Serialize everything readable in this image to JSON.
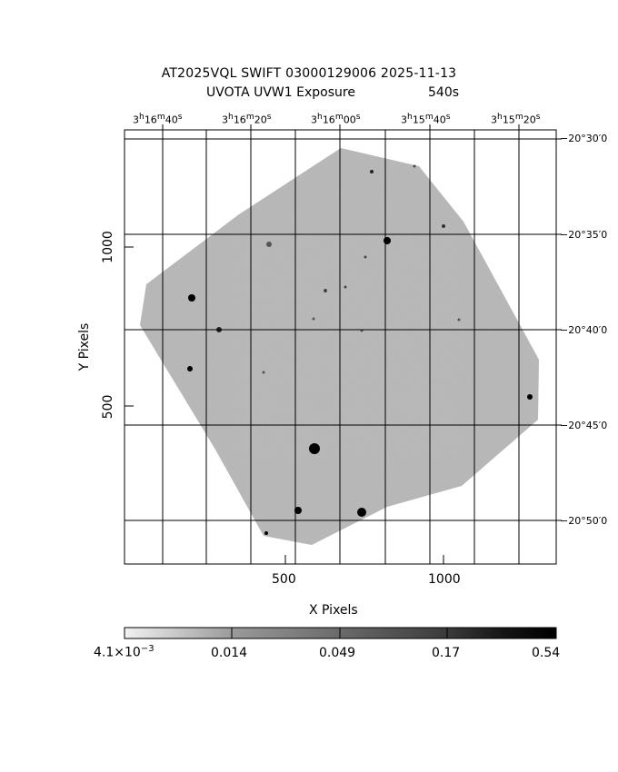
{
  "header": {
    "title_line1": "AT2025VQL SWIFT 03000129006 2025-11-13",
    "title_line2_left": "UVOTA UVW1 Exposure",
    "title_line2_right": "540s"
  },
  "ra_ticks": [
    {
      "h": "3",
      "m": "16",
      "s": "40"
    },
    {
      "h": "3",
      "m": "16",
      "s": "20"
    },
    {
      "h": "3",
      "m": "16",
      "s": "00"
    },
    {
      "h": "3",
      "m": "15",
      "s": "40"
    },
    {
      "h": "3",
      "m": "15",
      "s": "20"
    }
  ],
  "dec_ticks": [
    "−20°30′0",
    "−20°35′0",
    "−20°40′0",
    "−20°45′0",
    "−20°50′0"
  ],
  "x_axis": {
    "label": "X Pixels",
    "ticks": [
      "500",
      "1000"
    ]
  },
  "y_axis": {
    "label": "Y Pixels",
    "ticks": [
      "1000",
      "500"
    ]
  },
  "colorbar": {
    "labels": [
      "4.1×10",
      "0.014",
      "0.049",
      "0.17",
      "0.54"
    ],
    "first_exponent": "−3"
  },
  "colors": {
    "image_gray": "#9a9a9a",
    "frame": "#000000",
    "background": "#ffffff"
  }
}
